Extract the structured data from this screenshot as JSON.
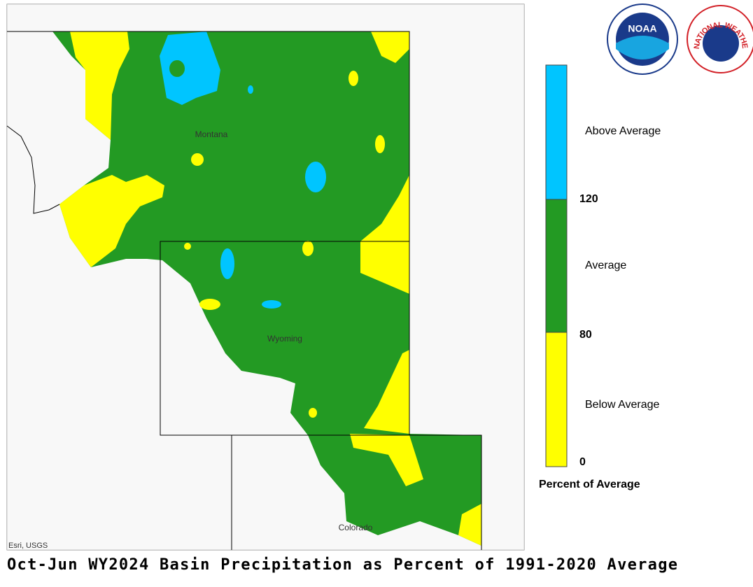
{
  "title": "Oct-Jun WY2024 Basin Precipitation as Percent of 1991-2020 Average",
  "map": {
    "labels": [
      "Montana",
      "Wyoming",
      "Colorado"
    ],
    "attribution": "Esri, USGS"
  },
  "legend": {
    "title": "Percent of Average",
    "classes": [
      "Above Average",
      "Average",
      "Below Average"
    ],
    "breaks": [
      120,
      80,
      0
    ]
  },
  "logos": {
    "noaa": "NOAA",
    "nws": "NATIONAL WEATHER SERVICE"
  }
}
